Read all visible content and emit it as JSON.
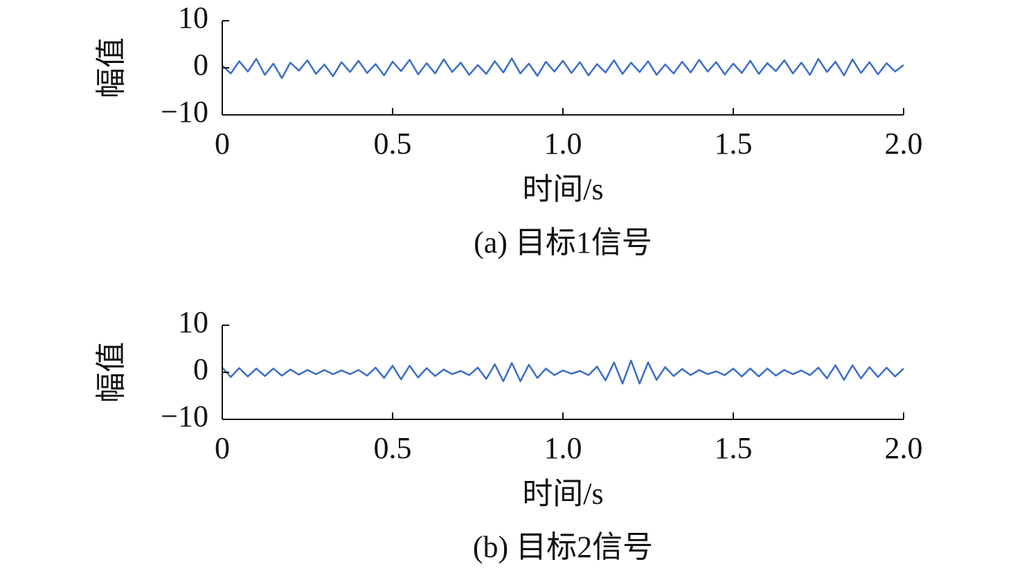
{
  "chart_data": [
    {
      "type": "line",
      "title": "(a) 目标1信号",
      "xlabel": "时间/s",
      "ylabel": "幅值",
      "x": [
        0,
        0.025,
        0.05,
        0.075,
        0.1,
        0.125,
        0.15,
        0.175,
        0.2,
        0.225,
        0.25,
        0.275,
        0.3,
        0.325,
        0.35,
        0.375,
        0.4,
        0.425,
        0.45,
        0.475,
        0.5,
        0.525,
        0.55,
        0.575,
        0.6,
        0.625,
        0.65,
        0.675,
        0.7,
        0.725,
        0.75,
        0.775,
        0.8,
        0.825,
        0.85,
        0.875,
        0.9,
        0.925,
        0.95,
        0.975,
        1,
        1.025,
        1.05,
        1.075,
        1.1,
        1.125,
        1.15,
        1.175,
        1.2,
        1.225,
        1.25,
        1.275,
        1.3,
        1.325,
        1.35,
        1.375,
        1.4,
        1.425,
        1.45,
        1.475,
        1.5,
        1.525,
        1.55,
        1.575,
        1.6,
        1.625,
        1.65,
        1.675,
        1.7,
        1.725,
        1.75,
        1.775,
        1.8,
        1.825,
        1.85,
        1.875,
        1.9,
        1.925,
        1.95,
        1.975,
        2
      ],
      "series": [
        {
          "color": "#3a6ec6",
          "values": [
            0.5,
            -1.2,
            1.4,
            -0.8,
            1.9,
            -1.5,
            0.9,
            -2.2,
            1.1,
            -0.6,
            1.6,
            -1.3,
            0.7,
            -1.8,
            1.2,
            -0.9,
            1.5,
            -1.1,
            0.8,
            -1.6,
            1.3,
            -0.7,
            1.7,
            -1.4,
            1.0,
            -1.2,
            1.8,
            -0.9,
            1.1,
            -1.5,
            0.6,
            -1.3,
            1.4,
            -1.0,
            2.0,
            -1.2,
            0.9,
            -1.7,
            1.3,
            -0.8,
            1.5,
            -1.1,
            1.2,
            -1.6,
            0.8,
            -1.0,
            1.6,
            -1.3,
            1.1,
            -0.9,
            1.4,
            -1.5,
            0.7,
            -1.2,
            1.3,
            -1.0,
            1.7,
            -0.8,
            1.2,
            -1.4,
            0.9,
            -1.1,
            1.5,
            -1.3,
            1.0,
            -0.7,
            1.6,
            -1.2,
            1.1,
            -1.5,
            1.9,
            -0.9,
            1.3,
            -1.6,
            1.8,
            -1.1,
            1.2,
            -1.4,
            1.0,
            -0.8,
            0.6
          ]
        }
      ],
      "xlim": [
        0,
        2
      ],
      "xticks": [
        0,
        0.5,
        {
          "value": 1,
          "label": "1.0"
        },
        1.5,
        {
          "value": 2,
          "label": "2.0"
        }
      ],
      "ylim": [
        -10,
        10
      ],
      "yticks": [
        {
          "value": -10,
          "label": "−10"
        },
        0,
        10
      ]
    },
    {
      "type": "line",
      "title": "(b) 目标2信号",
      "xlabel": "时间/s",
      "ylabel": "幅值",
      "x": [
        0,
        0.025,
        0.05,
        0.075,
        0.1,
        0.125,
        0.15,
        0.175,
        0.2,
        0.225,
        0.25,
        0.275,
        0.3,
        0.325,
        0.35,
        0.375,
        0.4,
        0.425,
        0.45,
        0.475,
        0.5,
        0.525,
        0.55,
        0.575,
        0.6,
        0.625,
        0.65,
        0.675,
        0.7,
        0.725,
        0.75,
        0.775,
        0.8,
        0.825,
        0.85,
        0.875,
        0.9,
        0.925,
        0.95,
        0.975,
        1,
        1.025,
        1.05,
        1.075,
        1.1,
        1.125,
        1.15,
        1.175,
        1.2,
        1.225,
        1.25,
        1.275,
        1.3,
        1.325,
        1.35,
        1.375,
        1.4,
        1.425,
        1.45,
        1.475,
        1.5,
        1.525,
        1.55,
        1.575,
        1.6,
        1.625,
        1.65,
        1.675,
        1.7,
        1.725,
        1.75,
        1.775,
        1.8,
        1.825,
        1.85,
        1.875,
        1.9,
        1.925,
        1.95,
        1.975,
        2
      ],
      "series": [
        {
          "color": "#3a6ec6",
          "values": [
            1.0,
            -1.0,
            0.9,
            -0.9,
            0.8,
            -0.8,
            0.8,
            -0.7,
            0.6,
            -0.5,
            0.5,
            -0.4,
            0.5,
            -0.4,
            0.4,
            -0.4,
            0.5,
            -0.7,
            1.0,
            -1.2,
            1.4,
            -1.5,
            1.4,
            -1.1,
            0.9,
            -0.8,
            0.6,
            -0.4,
            0.3,
            -0.6,
            1.0,
            -1.4,
            1.7,
            -1.9,
            2.0,
            -1.9,
            1.6,
            -1.2,
            0.8,
            -0.6,
            0.4,
            -0.3,
            0.3,
            -0.6,
            1.2,
            -1.7,
            2.1,
            -2.4,
            2.5,
            -2.4,
            2.1,
            -1.6,
            1.1,
            -0.8,
            0.7,
            -0.6,
            0.5,
            -0.4,
            0.2,
            -0.6,
            0.8,
            -0.9,
            0.8,
            -0.9,
            0.8,
            -0.7,
            0.5,
            -0.4,
            0.4,
            -0.6,
            1.0,
            -1.3,
            1.5,
            -1.6,
            1.5,
            -1.3,
            1.1,
            -1.0,
            1.0,
            -0.9,
            0.8
          ]
        }
      ],
      "xlim": [
        0,
        2
      ],
      "xticks": [
        0,
        0.5,
        {
          "value": 1,
          "label": "1.0"
        },
        1.5,
        {
          "value": 2,
          "label": "2.0"
        }
      ],
      "ylim": [
        -10,
        10
      ],
      "yticks": [
        {
          "value": -10,
          "label": "−10"
        },
        0,
        10
      ]
    }
  ]
}
